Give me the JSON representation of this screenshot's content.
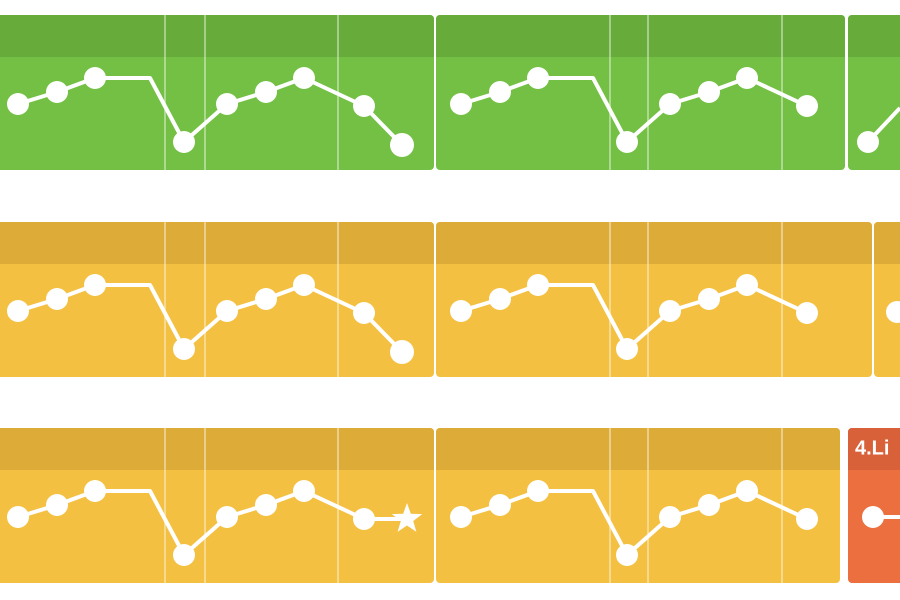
{
  "level_card": {
    "title": "4.Li"
  }
}
